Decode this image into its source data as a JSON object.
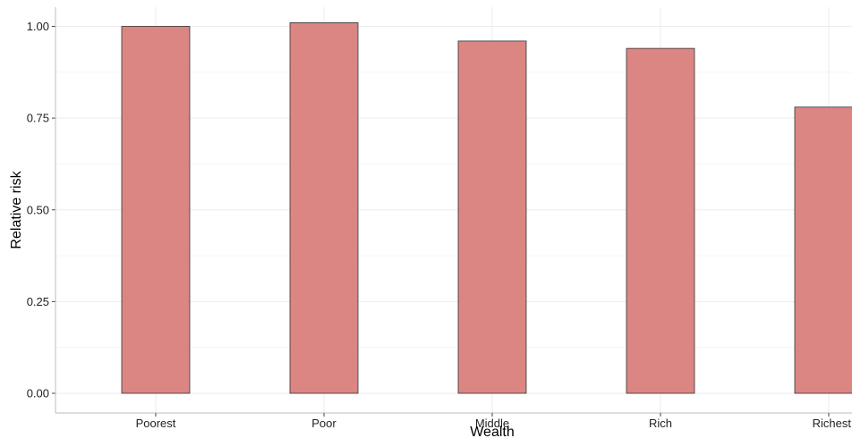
{
  "chart_data": {
    "type": "bar",
    "categories": [
      "Poorest",
      "Poor",
      "Middle",
      "Rich",
      "Richest"
    ],
    "values": [
      1.0,
      1.01,
      0.96,
      0.94,
      0.78
    ],
    "xlabel": "Wealth",
    "ylabel": "Relative risk",
    "ylim": [
      0,
      1.05
    ],
    "yticks": [
      "0.00",
      "0.25",
      "0.50",
      "0.75",
      "1.00"
    ],
    "grid": true,
    "bar_color": "#db8683",
    "bar_edge_color": "#333333"
  }
}
